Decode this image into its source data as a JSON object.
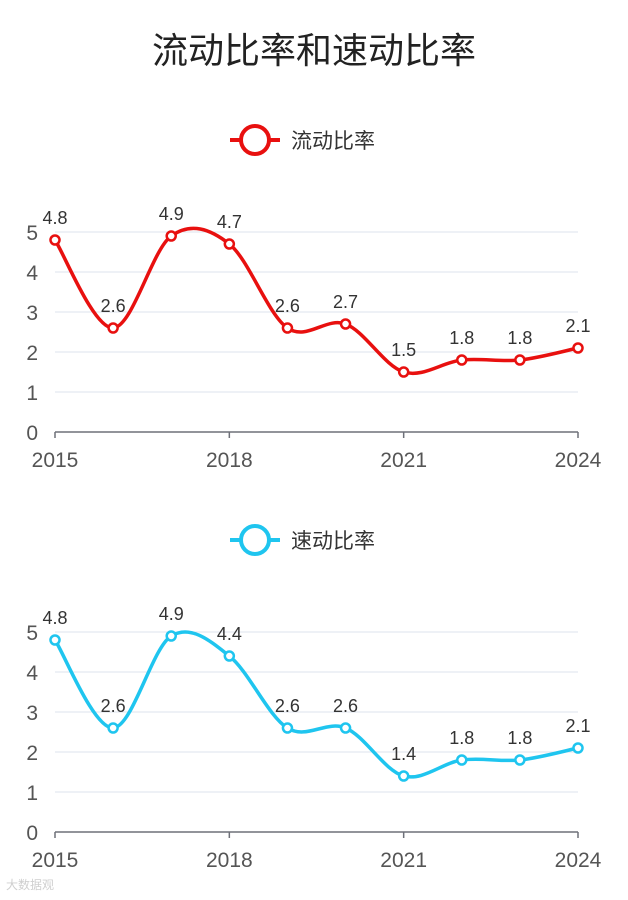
{
  "page_title": "流动比率和速动比率",
  "watermark": "大数据观",
  "chart_data": [
    {
      "type": "line",
      "name": "current-ratio",
      "legend": "流动比率",
      "color": "#e8100f",
      "x": [
        2015,
        2016,
        2017,
        2018,
        2019,
        2020,
        2021,
        2022,
        2023,
        2024
      ],
      "values": [
        4.8,
        2.6,
        4.9,
        4.7,
        2.6,
        2.7,
        1.5,
        1.8,
        1.8,
        2.1
      ],
      "data_labels": [
        "4.8",
        "2.6",
        "4.9",
        "4.7",
        "2.6",
        "2.7",
        "1.5",
        "1.8",
        "1.8",
        "2.1"
      ],
      "x_tick_labels": [
        "2015",
        "2018",
        "2021",
        "2024"
      ],
      "x_tick_values": [
        2015,
        2018,
        2021,
        2024
      ],
      "y_tick_labels": [
        "0",
        "1",
        "2",
        "3",
        "4",
        "5"
      ],
      "ylim": [
        0,
        5
      ],
      "grid": true
    },
    {
      "type": "line",
      "name": "quick-ratio",
      "legend": "速动比率",
      "color": "#1fc5ef",
      "x": [
        2015,
        2016,
        2017,
        2018,
        2019,
        2020,
        2021,
        2022,
        2023,
        2024
      ],
      "values": [
        4.8,
        2.6,
        4.9,
        4.4,
        2.6,
        2.6,
        1.4,
        1.8,
        1.8,
        2.1
      ],
      "data_labels": [
        "4.8",
        "2.6",
        "4.9",
        "4.4",
        "2.6",
        "2.6",
        "1.4",
        "1.8",
        "1.8",
        "2.1"
      ],
      "x_tick_labels": [
        "2015",
        "2018",
        "2021",
        "2024"
      ],
      "x_tick_values": [
        2015,
        2018,
        2021,
        2024
      ],
      "y_tick_labels": [
        "0",
        "1",
        "2",
        "3",
        "4",
        "5"
      ],
      "ylim": [
        0,
        5
      ],
      "grid": true
    }
  ]
}
